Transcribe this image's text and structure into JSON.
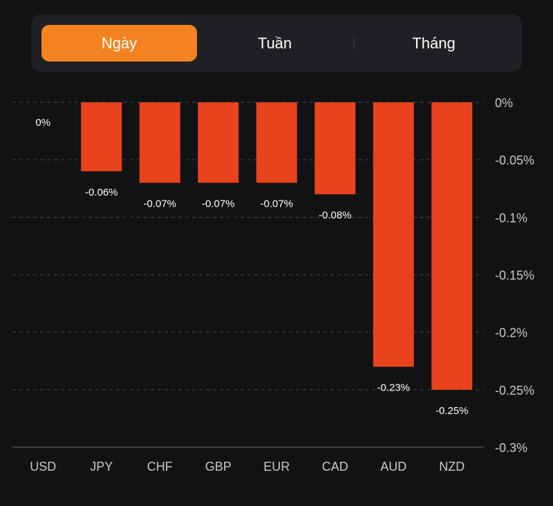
{
  "period_tabs": {
    "selected": "Ngày",
    "items": [
      {
        "label": "Ngày",
        "active": true
      },
      {
        "label": "Tuần",
        "active": false
      },
      {
        "label": "Tháng",
        "active": false
      }
    ]
  },
  "colors": {
    "bar": "#e8431c",
    "active_tab": "#f38320",
    "grid": "#4a4c50",
    "axis_text": "#c9cacd",
    "label_text": "#ffffff"
  },
  "chart_data": {
    "type": "bar",
    "title": "",
    "xlabel": "",
    "ylabel": "",
    "categories": [
      "USD",
      "JPY",
      "CHF",
      "GBP",
      "EUR",
      "CAD",
      "AUD",
      "NZD"
    ],
    "values": [
      0,
      -0.06,
      -0.07,
      -0.07,
      -0.07,
      -0.08,
      -0.23,
      -0.25
    ],
    "data_labels": [
      "0%",
      "-0.06%",
      "-0.07%",
      "-0.07%",
      "-0.07%",
      "-0.08%",
      "-0.23%",
      "-0.25%"
    ],
    "ylim": [
      -0.3,
      0
    ],
    "yticks": [
      0,
      -0.05,
      -0.1,
      -0.15,
      -0.2,
      -0.25,
      -0.3
    ],
    "ytick_labels": [
      "0%",
      "-0.05%",
      "-0.1%",
      "-0.15%",
      "-0.2%",
      "-0.25%",
      "-0.3%"
    ],
    "y_axis_side": "right",
    "grid": true,
    "unit": "%"
  }
}
